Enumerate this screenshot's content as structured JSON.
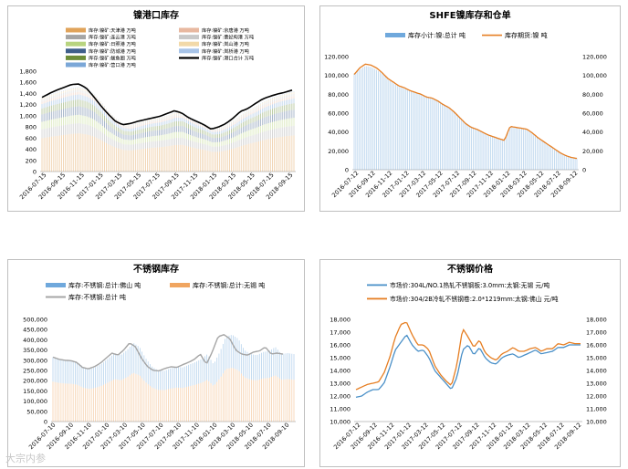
{
  "watermark": "大宗内参",
  "chart_data": [
    {
      "id": "nickel-port",
      "type": "bar",
      "title": "镍港口库存",
      "legend_placement": "top",
      "ylim": [
        0,
        1800
      ],
      "yticks": [
        0,
        200,
        400,
        600,
        800,
        1000,
        1200,
        1400,
        1600,
        1800
      ],
      "yticks_text": [
        "0",
        "200",
        "400",
        "600",
        "800",
        "1,000",
        "1,200",
        "1,400",
        "1,600",
        "1,800"
      ],
      "xticks": [
        "2016-07-15",
        "2016-09-15",
        "2016-11-15",
        "2017-01-15",
        "2017-03-15",
        "2017-05-15",
        "2017-07-15",
        "2017-09-15",
        "2017-11-15",
        "2018-01-15",
        "2018-03-15",
        "2018-05-15",
        "2018-07-15",
        "2018-09-15"
      ],
      "series": [
        {
          "name": "库存:镍矿:天津港 万吨",
          "color": "#E0A35A"
        },
        {
          "name": "库存:镍矿:连云港 万吨",
          "color": "#A5A5A5"
        },
        {
          "name": "库存:镍矿:日照港 万吨",
          "color": "#B8D47F"
        },
        {
          "name": "库存:镍矿:防城港 万吨",
          "color": "#3F5F8A"
        },
        {
          "name": "库存:镍矿:鲅鱼圈 万吨",
          "color": "#6E8E3A"
        },
        {
          "name": "库存:镍矿:营口港 万吨",
          "color": "#7BA7D7"
        },
        {
          "name": "库存:镍矿:京唐港 万吨",
          "color": "#E8B8A0"
        },
        {
          "name": "库存:镍矿:曹妃甸港 万吨",
          "color": "#C9C9C9"
        },
        {
          "name": "库存:镍矿:岚山港 万吨",
          "color": "#F2D9A8"
        },
        {
          "name": "库存:镍矿:岚桥港 万吨",
          "color": "#A8C4E8"
        },
        {
          "name": "库存:镍矿:港口合计 万吨",
          "color": "#000000",
          "line": true
        }
      ],
      "line_series": {
        "name": "库存:镍矿:港口合计 万吨",
        "x": [
          0,
          1,
          2,
          3,
          4,
          5,
          6,
          7,
          8,
          9,
          10,
          11,
          12,
          13,
          14,
          15,
          16,
          17,
          18,
          19,
          20,
          21,
          22,
          23,
          24,
          25,
          26,
          27
        ],
        "values": [
          1330,
          1400,
          1460,
          1510,
          1560,
          1570,
          1500,
          1350,
          1180,
          1030,
          900,
          840,
          860,
          900,
          930,
          960,
          990,
          1040,
          1090,
          1050,
          960,
          900,
          840,
          760,
          800,
          860,
          960,
          1080
        ]
      },
      "line_series_tail": {
        "x": [
          27,
          28,
          29,
          30,
          31,
          32,
          33,
          34
        ],
        "values": [
          1080,
          1130,
          1220,
          1300,
          1350,
          1390,
          1420,
          1460
        ]
      },
      "bar_totals": [
        1330,
        1380,
        1420,
        1460,
        1500,
        1520,
        1480,
        1400,
        1250,
        1080,
        950,
        860,
        840,
        880,
        920,
        950,
        970,
        1010,
        1060,
        1060,
        980,
        910,
        860,
        780,
        790,
        850,
        930,
        1030,
        1110,
        1180,
        1260,
        1320,
        1370,
        1410,
        1440
      ],
      "bar_stack_share": [
        0.45,
        0.12,
        0.1,
        0.1,
        0.08,
        0.06,
        0.03,
        0.03,
        0.02,
        0.01
      ]
    },
    {
      "id": "shfe-nickel",
      "type": "bar",
      "title": "SHFE镍库存和仓单",
      "legend_placement": "top",
      "ylim": [
        0,
        120000
      ],
      "yticks_text": [
        "0",
        "20,000",
        "40,000",
        "60,000",
        "80,000",
        "100,000",
        "120,000"
      ],
      "y2ticks_text": [
        "0",
        "20,000",
        "40,000",
        "60,000",
        "80,000",
        "100,000",
        "120,000"
      ],
      "xticks": [
        "2016-07-12",
        "2016-09-12",
        "2016-11-12",
        "2017-01-12",
        "2017-03-12",
        "2017-05-12",
        "2017-07-12",
        "2017-09-12",
        "2017-11-12",
        "2018-01-12",
        "2018-03-12",
        "2018-05-12",
        "2018-07-12",
        "2018-09-12"
      ],
      "series": [
        {
          "name": "库存小计:镍:总计 吨",
          "color": "#6FA8DC"
        },
        {
          "name": "库存期货:镍 吨",
          "color": "#E67E22"
        }
      ],
      "bar_values": [
        102000,
        106000,
        110000,
        109000,
        106000,
        102000,
        96000,
        92000,
        88000,
        86000,
        84000,
        82000,
        80000,
        78000,
        76000,
        74000,
        70000,
        66000,
        62000,
        56000,
        50000,
        46000,
        43000,
        40000,
        37000,
        35000,
        33000,
        32000,
        46000,
        45000,
        44000,
        42000,
        38000,
        34000,
        30000,
        26000,
        22000,
        18000,
        15000,
        13000,
        12000
      ],
      "line_values": [
        101000,
        108000,
        112000,
        111000,
        108000,
        103000,
        97000,
        93000,
        89000,
        87000,
        84000,
        82000,
        80000,
        77000,
        76000,
        73000,
        69000,
        66000,
        61000,
        55000,
        49000,
        45000,
        43000,
        40000,
        37000,
        35000,
        33000,
        31000,
        46000,
        45000,
        44000,
        43000,
        39000,
        34000,
        30000,
        26000,
        22000,
        18000,
        15000,
        13000,
        12000
      ]
    },
    {
      "id": "stainless-inventory",
      "type": "bar",
      "title": "不锈钢库存",
      "legend_placement": "top",
      "ylim": [
        0,
        500000
      ],
      "yticks_text": [
        "0",
        "50,000",
        "100,000",
        "150,000",
        "200,000",
        "250,000",
        "300,000",
        "350,000",
        "400,000",
        "450,000",
        "500,000"
      ],
      "xticks": [
        "2016-07-10",
        "2016-09-10",
        "2016-11-10",
        "2017-01-10",
        "2017-03-10",
        "2017-05-10",
        "2017-07-10",
        "2017-09-10",
        "2017-11-10",
        "2018-01-10",
        "2018-03-10",
        "2018-05-10",
        "2018-07-10",
        "2018-09-10"
      ],
      "series": [
        {
          "name": "库存:不锈钢:总计:佛山 吨",
          "color": "#6FA8DC"
        },
        {
          "name": "库存:不锈钢:总计:无锡 吨",
          "color": "#F0A560"
        },
        {
          "name": "库存:不锈钢:总计 吨",
          "color": "#A5A5A5"
        }
      ],
      "total_values": [
        315000,
        305000,
        300000,
        298000,
        290000,
        265000,
        258000,
        268000,
        285000,
        310000,
        335000,
        325000,
        350000,
        385000,
        365000,
        310000,
        270000,
        250000,
        248000,
        260000,
        268000,
        265000,
        278000,
        290000,
        305000,
        330000,
        280000,
        340000,
        415000,
        425000,
        405000,
        350000,
        330000,
        325000,
        340000,
        345000,
        365000,
        330000,
        335000,
        330000
      ],
      "wuxi_share": 0.62
    },
    {
      "id": "stainless-price",
      "type": "line",
      "title": "不锈钢价格",
      "legend_placement": "top",
      "ylim": [
        10000,
        18000
      ],
      "yticks_text": [
        "10,000",
        "11,000",
        "12,000",
        "13,000",
        "14,000",
        "15,000",
        "16,000",
        "17,000",
        "18,000"
      ],
      "y2ticks_text": [
        "10,000",
        "11,000",
        "12,000",
        "13,000",
        "14,000",
        "15,000",
        "16,000",
        "17,000",
        "18,000"
      ],
      "xticks": [
        "2016-07-12",
        "2016-09-12",
        "2016-11-12",
        "2017-01-12",
        "2017-03-12",
        "2017-05-12",
        "2017-07-12",
        "2017-09-12",
        "2017-11-12",
        "2018-01-12",
        "2018-03-12",
        "2018-05-12",
        "2018-07-12",
        "2018-09-12"
      ],
      "series": [
        {
          "name": "市场价:304L/NO.1热轧不锈钢板:3.0mm:太钢:无锡 元/吨",
          "color": "#4A90C8",
          "values": [
            11900,
            12000,
            12300,
            12500,
            12500,
            13000,
            14200,
            15600,
            16200,
            16800,
            16000,
            15500,
            15600,
            15000,
            14000,
            13500,
            13000,
            12500,
            13500,
            15600,
            16000,
            15200,
            15800,
            15000,
            14600,
            14500,
            15000,
            15200,
            15300,
            15000,
            15200,
            15400,
            15600,
            15300,
            15400,
            15500,
            15800,
            15800,
            16000,
            16000,
            16000
          ]
        },
        {
          "name": "市场价:304/2B冷轧不锈钢卷:2.0*1219mm:太钢:佛山 元/吨",
          "color": "#E67E22",
          "values": [
            12500,
            12700,
            12900,
            13000,
            13100,
            13800,
            15000,
            16600,
            17600,
            17800,
            16800,
            16000,
            16000,
            15600,
            14400,
            13700,
            13200,
            12800,
            14500,
            17300,
            16600,
            15800,
            16400,
            15400,
            15000,
            14800,
            15300,
            15500,
            15800,
            15500,
            15500,
            15700,
            15800,
            15500,
            15700,
            15700,
            16100,
            16000,
            16200,
            16100,
            16100
          ]
        }
      ]
    }
  ]
}
